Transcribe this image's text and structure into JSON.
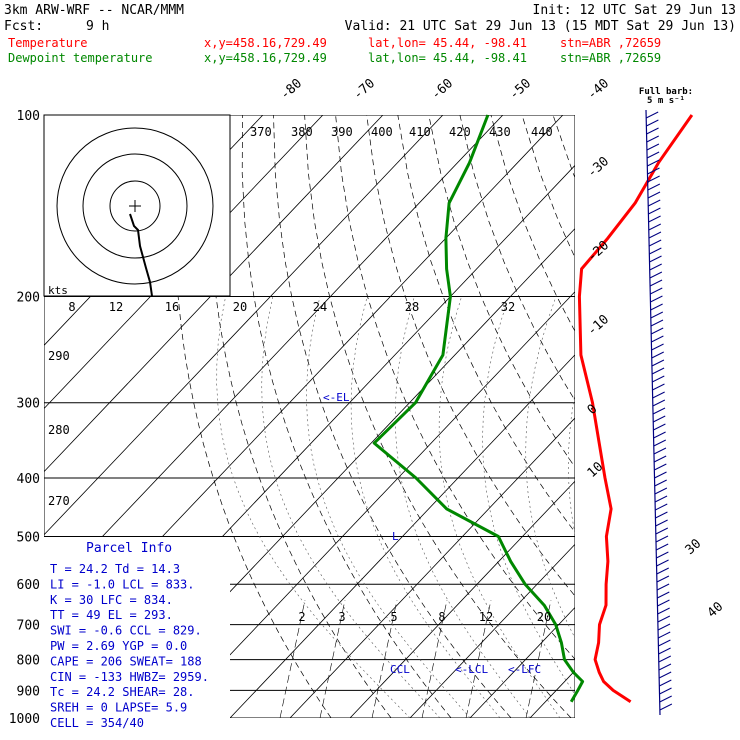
{
  "header": {
    "model": "3km ARW-WRF -- NCAR/MMM",
    "init": "Init: 12 UTC Sat 29 Jun 13",
    "fcst_label": "Fcst:",
    "fcst_value": "9 h",
    "valid": "Valid: 21 UTC Sat 29 Jun 13 (15 MDT Sat 29 Jun 13)",
    "rows": [
      {
        "label": "Temperature",
        "xy": "x,y=458.16,729.49",
        "latlon": "lat,lon= 45.44, -98.41",
        "stn": "stn=ABR ,72659",
        "color": "#ff0000"
      },
      {
        "label": "Dewpoint temperature",
        "xy": "x,y=458.16,729.49",
        "latlon": "lat,lon= 45.44, -98.41",
        "stn": "stn=ABR ,72659",
        "color": "#008800"
      }
    ]
  },
  "full_barb": {
    "line1": "Full barb:",
    "line2": "5 m s⁻¹"
  },
  "hodograph_unit": "kts",
  "parcel_info": {
    "title": "Parcel Info",
    "rows": [
      "T  =   24.2 Td =  14.3",
      "LI =   -1.0 LCL =  833.",
      "K  =     30 LFC =  834.",
      "TT =     49 EL  =  293.",
      "SWI =  -0.6 CCL =  829.",
      "PW =   2.69 YGP =   0.0",
      "CAPE =  206 SWEAT=  188",
      "CIN =  -133 HWBZ= 2959.",
      "Tc  =  24.2 SHEAR=  28.",
      "SREH =    0 LAPSE=  5.9",
      "CELL = 354/40"
    ]
  },
  "annotations": {
    "el": "<-EL",
    "ccl": "CCL",
    "lcl": "<-LCL",
    "lfc": "<-LFC",
    "l": "L"
  },
  "chart_data": {
    "type": "line",
    "subtype": "skew-T log-p",
    "y_axis": {
      "label": "",
      "scale": "log",
      "range": [
        1000,
        100
      ],
      "ticks": [
        100,
        200,
        300,
        400,
        500,
        600,
        700,
        800,
        900,
        1000
      ]
    },
    "isotherm_labels": [
      -80,
      -70,
      -60,
      -50,
      -40,
      -30,
      -20,
      -10,
      0,
      10,
      30,
      40
    ],
    "theta_e_labels": [
      370,
      380,
      390,
      400,
      410,
      420,
      430,
      440
    ],
    "hodo_speed_labels": [
      8,
      12,
      16,
      20,
      24,
      28,
      32
    ],
    "theta_labels": [
      290,
      280,
      270
    ],
    "mixing_ratio_labels": [
      2,
      3,
      5,
      8,
      12,
      20
    ],
    "series": [
      {
        "name": "Temperature",
        "color": "#ff0000",
        "points": [
          [
            940,
            24.2
          ],
          [
            900,
            19.5
          ],
          [
            870,
            16.5
          ],
          [
            840,
            14.3
          ],
          [
            800,
            11.6
          ],
          [
            750,
            9.5
          ],
          [
            700,
            6.8
          ],
          [
            650,
            4.8
          ],
          [
            600,
            1.5
          ],
          [
            550,
            -1.8
          ],
          [
            500,
            -6.0
          ],
          [
            450,
            -9.6
          ],
          [
            400,
            -15.5
          ],
          [
            350,
            -22.0
          ],
          [
            300,
            -29.5
          ],
          [
            250,
            -39.0
          ],
          [
            200,
            -48.5
          ],
          [
            180,
            -52.5
          ],
          [
            160,
            -53.0
          ],
          [
            140,
            -54.0
          ],
          [
            120,
            -56.5
          ],
          [
            100,
            -58.5
          ]
        ]
      },
      {
        "name": "Dewpoint temperature",
        "color": "#008800",
        "points": [
          [
            940,
            14.3
          ],
          [
            900,
            13.6
          ],
          [
            870,
            13.0
          ],
          [
            840,
            10.0
          ],
          [
            800,
            6.5
          ],
          [
            750,
            3.3
          ],
          [
            700,
            -0.5
          ],
          [
            650,
            -5.5
          ],
          [
            600,
            -12.0
          ],
          [
            550,
            -18.0
          ],
          [
            500,
            -24.0
          ],
          [
            450,
            -37.0
          ],
          [
            400,
            -47.0
          ],
          [
            350,
            -59.5
          ],
          [
            300,
            -59.0
          ],
          [
            250,
            -62.0
          ],
          [
            200,
            -70.0
          ],
          [
            180,
            -75.0
          ],
          [
            160,
            -80.0
          ],
          [
            140,
            -85.0
          ],
          [
            120,
            -88.0
          ],
          [
            100,
            -92.5
          ]
        ]
      }
    ]
  }
}
